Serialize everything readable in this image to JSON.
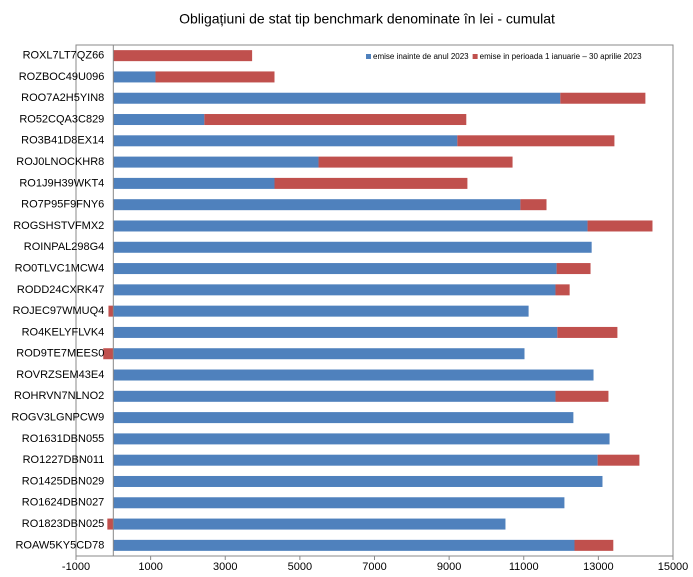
{
  "chart_data": {
    "type": "stacked_barh",
    "title": "Obligațiuni de stat tip benchmark denominate în lei - cumulat",
    "categories": [
      "ROXL7LT7QZ66",
      "ROZBOC49U096",
      "ROO7A2H5YIN8",
      "RO52CQA3C829",
      "RO3B41D8EX14",
      "ROJ0LNOCKHR8",
      "RO1J9H39WKT4",
      "RO7P95F9FNY6",
      "ROGSHSTVFMX2",
      "ROINPAL298G4",
      "RO0TLVC1MCW4",
      "RODD24CXRK47",
      "ROJEC97WMUQ4",
      "RO4KELYFLVK4",
      "ROD9TE7MEES0",
      "ROVRZSEM43E4",
      "ROHRVN7NLNO2",
      "ROGV3LGNPCW9",
      "RO1631DBN055",
      "RO1227DBN011",
      "RO1425DBN029",
      "RO1624DBN027",
      "RO1823DBN025",
      "ROAW5KY5CD78"
    ],
    "series": [
      {
        "name": "emise inainte de anul 2023",
        "color": "#4f81bd",
        "values": [
          0,
          1130,
          11980,
          2440,
          9220,
          5500,
          4320,
          10910,
          12710,
          12820,
          11880,
          11850,
          11130,
          11900,
          11020,
          12870,
          11850,
          12330,
          13300,
          12980,
          13110,
          12090,
          10510,
          12360
        ]
      },
      {
        "name": "emise in perioada 1 ianuarie – 30 aprilie 2023",
        "color": "#c0504d",
        "values": [
          3720,
          3190,
          2280,
          7020,
          4210,
          5200,
          5170,
          700,
          1740,
          0,
          910,
          380,
          -130,
          1610,
          -270,
          0,
          1420,
          0,
          0,
          1120,
          0,
          0,
          -160,
          1040
        ]
      }
    ],
    "xlim": [
      -1000,
      15000
    ],
    "xticks": [
      -1000,
      1000,
      3000,
      5000,
      7000,
      9000,
      11000,
      13000,
      15000
    ],
    "legend": "top-right"
  }
}
